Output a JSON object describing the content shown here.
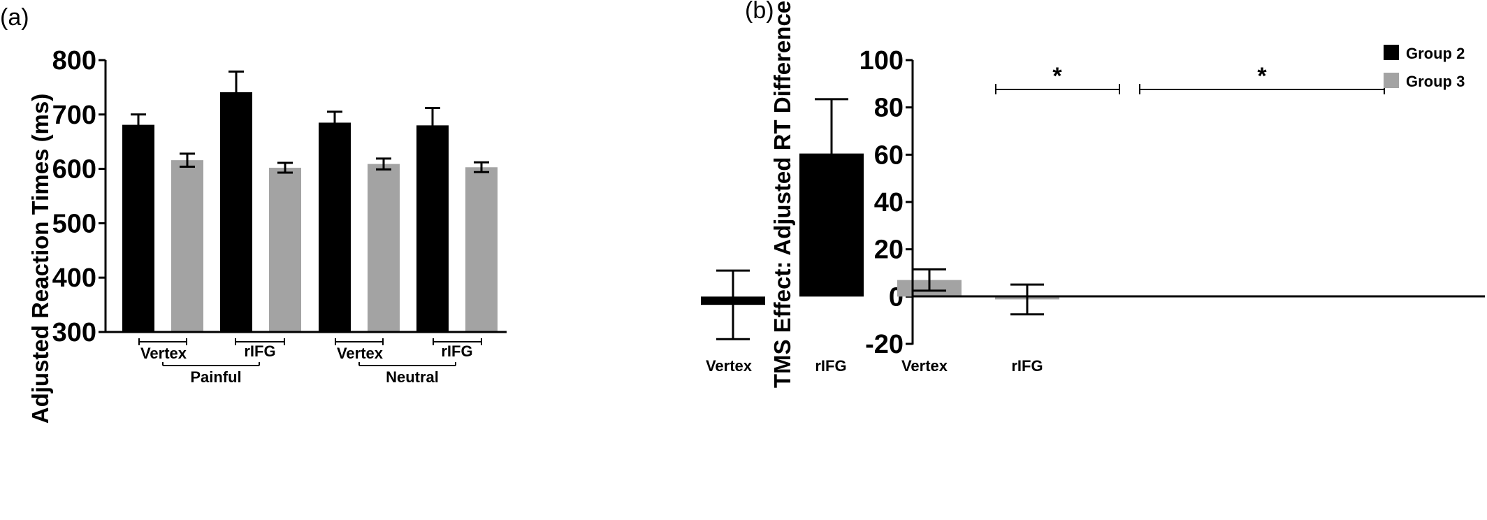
{
  "colors": {
    "group2": "#000000",
    "group3": "#a3a3a3"
  },
  "chart_data": [
    {
      "type": "bar",
      "panel_label": "(a)",
      "ylabel": "Adjusted Reaction Times (ms)",
      "ylim": [
        300,
        800
      ],
      "yticks": [
        300,
        400,
        500,
        600,
        700,
        800
      ],
      "series_colors": [
        "group2",
        "group3"
      ],
      "bars": [
        {
          "series": "Group 2",
          "value": 681,
          "err": 19
        },
        {
          "series": "Group 3",
          "value": 616,
          "err": 12
        },
        {
          "series": "Group 2",
          "value": 741,
          "err": 38
        },
        {
          "series": "Group 3",
          "value": 602,
          "err": 9
        },
        {
          "series": "Group 2",
          "value": 685,
          "err": 20
        },
        {
          "series": "Group 3",
          "value": 609,
          "err": 10
        },
        {
          "series": "Group 2",
          "value": 680,
          "err": 32
        },
        {
          "series": "Group 3",
          "value": 603,
          "err": 9
        }
      ],
      "site_labels": [
        "Vertex",
        "rIFG",
        "Vertex",
        "rIFG"
      ],
      "condition_labels": [
        "Painful",
        "Neutral"
      ]
    },
    {
      "type": "bar",
      "panel_label": "(b)",
      "ylabel": "TMS Effect: Adjusted RT Difference",
      "ylim": [
        -20,
        100
      ],
      "yticks": [
        -20,
        0,
        20,
        40,
        60,
        80,
        100
      ],
      "categories": [
        "Vertex",
        "rIFG",
        "Vertex",
        "rIFG"
      ],
      "bars": [
        {
          "series": "Group 2",
          "value": -3.5,
          "err": 14.5
        },
        {
          "series": "Group 2",
          "value": 60.5,
          "err": 23
        },
        {
          "series": "Group 3",
          "value": 7,
          "err": 4.5
        },
        {
          "series": "Group 3",
          "value": -1.2,
          "err": 6.3
        }
      ],
      "legend": [
        {
          "name": "Group 2",
          "color": "group2"
        },
        {
          "name": "Group 3",
          "color": "group3"
        }
      ],
      "legend_position": "top-right",
      "significance": [
        "*",
        "*"
      ]
    }
  ]
}
